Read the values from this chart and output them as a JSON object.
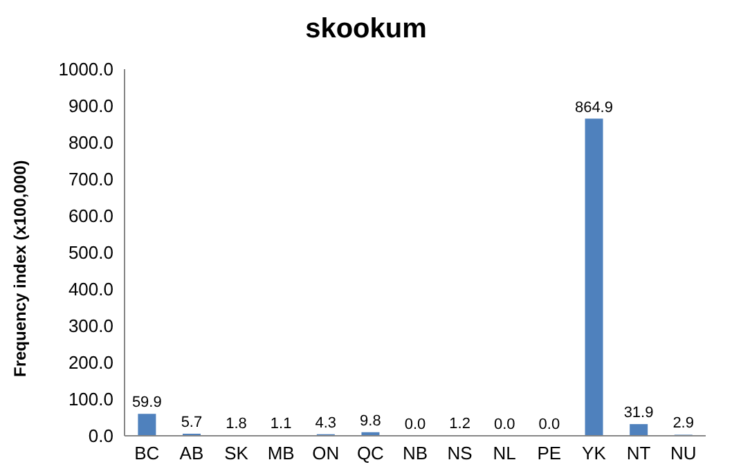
{
  "chart_data": {
    "type": "bar",
    "title": "skookum",
    "ylabel": "Frequency index (x100,000)",
    "categories": [
      "BC",
      "AB",
      "SK",
      "MB",
      "ON",
      "QC",
      "NB",
      "NS",
      "NL",
      "PE",
      "YK",
      "NT",
      "NU"
    ],
    "values": [
      59.9,
      5.7,
      1.8,
      1.1,
      4.3,
      9.8,
      0.0,
      1.2,
      0.0,
      0.0,
      864.9,
      31.9,
      2.9
    ],
    "value_labels": [
      "59.9",
      "5.7",
      "1.8",
      "1.1",
      "4.3",
      "9.8",
      "0.0",
      "1.2",
      "0.0",
      "0.0",
      "864.9",
      "31.9",
      "2.9"
    ],
    "color": "#4f81bd",
    "ylim": [
      0,
      1000
    ],
    "yticks": [
      {
        "value": 0,
        "label": "0.0"
      },
      {
        "value": 100,
        "label": "100.0"
      },
      {
        "value": 200,
        "label": "200.0"
      },
      {
        "value": 300,
        "label": "300.0"
      },
      {
        "value": 400,
        "label": "400.0"
      },
      {
        "value": 500,
        "label": "500.0"
      },
      {
        "value": 600,
        "label": "600.0"
      },
      {
        "value": 700,
        "label": "700.0"
      },
      {
        "value": 800,
        "label": "800.0"
      },
      {
        "value": 900,
        "label": "900.0"
      },
      {
        "value": 1000,
        "label": "1000.0"
      }
    ],
    "grid": false,
    "legend": false
  }
}
